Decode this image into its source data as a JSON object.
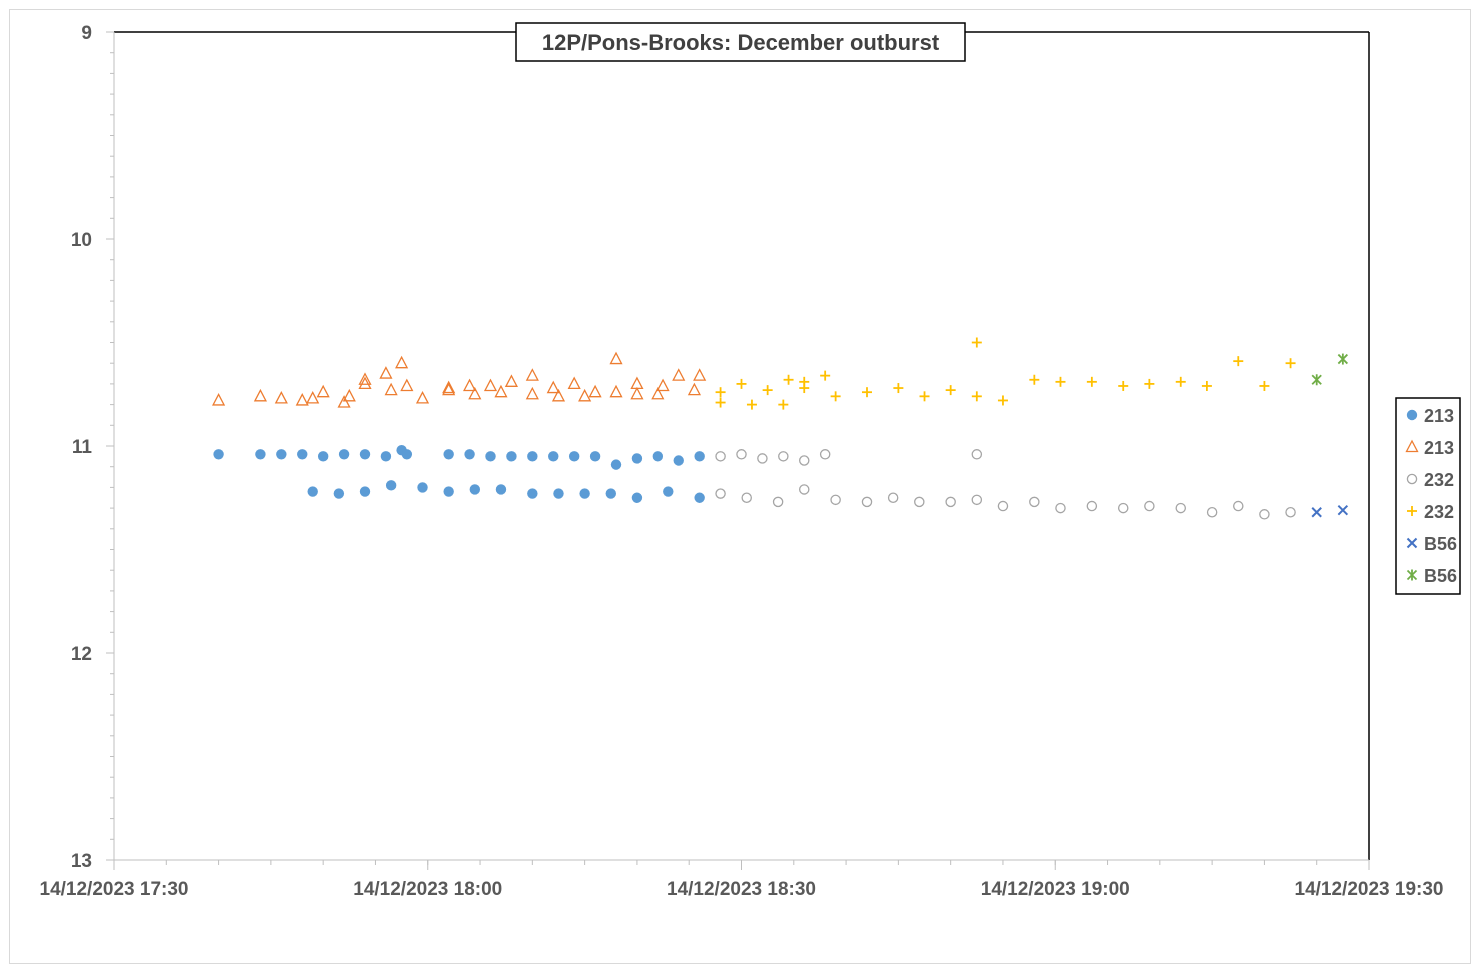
{
  "chart_data": {
    "type": "scatter",
    "title": "12P/Pons-Brooks: December outburst",
    "xlabel": "",
    "ylabel": "",
    "x_axis": {
      "type": "datetime",
      "min": "2023-12-14T17:30",
      "max": "2023-12-14T19:30",
      "major_ticks": [
        "2023-12-14T17:30",
        "2023-12-14T18:00",
        "2023-12-14T18:30",
        "2023-12-14T19:00",
        "2023-12-14T19:30"
      ],
      "tick_labels": [
        "14/12/2023 17:30",
        "14/12/2023 18:00",
        "14/12/2023 18:30",
        "14/12/2023 19:00",
        "14/12/2023 19:30"
      ],
      "minor_step_minutes": 5
    },
    "y_axis": {
      "min": 9,
      "max": 13,
      "reversed": true,
      "ticks": [
        9,
        10,
        11,
        12,
        13
      ],
      "tick_labels": [
        "9",
        "10",
        "11",
        "12",
        "13"
      ],
      "minor_step": 0.1
    },
    "grid": false,
    "legend_position": "right",
    "series": [
      {
        "name": "213",
        "marker": "filled-circle",
        "color": "#5B9BD5",
        "points": [
          [
            "17:40:00",
            11.04
          ],
          [
            "17:44:00",
            11.04
          ],
          [
            "17:46:00",
            11.04
          ],
          [
            "17:48:00",
            11.04
          ],
          [
            "17:50:00",
            11.05
          ],
          [
            "17:52:00",
            11.04
          ],
          [
            "17:54:00",
            11.04
          ],
          [
            "17:56:00",
            11.05
          ],
          [
            "17:57:30",
            11.02
          ],
          [
            "17:58:00",
            11.04
          ],
          [
            "18:02:00",
            11.04
          ],
          [
            "18:04:00",
            11.04
          ],
          [
            "18:06:00",
            11.05
          ],
          [
            "18:08:00",
            11.05
          ],
          [
            "18:10:00",
            11.05
          ],
          [
            "18:12:00",
            11.05
          ],
          [
            "18:14:00",
            11.05
          ],
          [
            "18:16:00",
            11.05
          ],
          [
            "18:18:00",
            11.09
          ],
          [
            "18:20:00",
            11.06
          ],
          [
            "18:22:00",
            11.05
          ],
          [
            "18:24:00",
            11.07
          ],
          [
            "18:26:00",
            11.05
          ],
          [
            "17:49:00",
            11.22
          ],
          [
            "17:51:30",
            11.23
          ],
          [
            "17:54:00",
            11.22
          ],
          [
            "17:56:30",
            11.19
          ],
          [
            "17:59:30",
            11.2
          ],
          [
            "18:02:00",
            11.22
          ],
          [
            "18:04:30",
            11.21
          ],
          [
            "18:07:00",
            11.21
          ],
          [
            "18:10:00",
            11.23
          ],
          [
            "18:12:30",
            11.23
          ],
          [
            "18:15:00",
            11.23
          ],
          [
            "18:17:30",
            11.23
          ],
          [
            "18:20:00",
            11.25
          ],
          [
            "18:23:00",
            11.22
          ],
          [
            "18:26:00",
            11.25
          ]
        ]
      },
      {
        "name": "213",
        "marker": "open-triangle",
        "color": "#ED7D31",
        "points": [
          [
            "17:40:00",
            10.78
          ],
          [
            "17:44:00",
            10.76
          ],
          [
            "17:46:00",
            10.77
          ],
          [
            "17:48:00",
            10.78
          ],
          [
            "17:49:00",
            10.77
          ],
          [
            "17:50:00",
            10.74
          ],
          [
            "17:52:00",
            10.79
          ],
          [
            "17:52:30",
            10.76
          ],
          [
            "17:54:00",
            10.7
          ],
          [
            "17:54:00",
            10.68
          ],
          [
            "17:56:00",
            10.65
          ],
          [
            "17:56:30",
            10.73
          ],
          [
            "17:57:30",
            10.6
          ],
          [
            "17:58:00",
            10.71
          ],
          [
            "17:59:30",
            10.77
          ],
          [
            "18:02:00",
            10.73
          ],
          [
            "18:02:00",
            10.72
          ],
          [
            "18:04:00",
            10.71
          ],
          [
            "18:04:30",
            10.75
          ],
          [
            "18:06:00",
            10.71
          ],
          [
            "18:07:00",
            10.74
          ],
          [
            "18:08:00",
            10.69
          ],
          [
            "18:10:00",
            10.75
          ],
          [
            "18:10:00",
            10.66
          ],
          [
            "18:12:00",
            10.72
          ],
          [
            "18:12:30",
            10.76
          ],
          [
            "18:14:00",
            10.7
          ],
          [
            "18:15:00",
            10.76
          ],
          [
            "18:16:00",
            10.74
          ],
          [
            "18:18:00",
            10.74
          ],
          [
            "18:18:00",
            10.58
          ],
          [
            "18:20:00",
            10.75
          ],
          [
            "18:20:00",
            10.7
          ],
          [
            "18:22:00",
            10.75
          ],
          [
            "18:22:30",
            10.71
          ],
          [
            "18:24:00",
            10.66
          ],
          [
            "18:25:30",
            10.73
          ],
          [
            "18:26:00",
            10.66
          ]
        ]
      },
      {
        "name": "232",
        "marker": "open-circle",
        "color": "#A5A5A5",
        "points": [
          [
            "18:28:00",
            11.05
          ],
          [
            "18:30:00",
            11.04
          ],
          [
            "18:32:00",
            11.06
          ],
          [
            "18:34:00",
            11.05
          ],
          [
            "18:36:00",
            11.07
          ],
          [
            "18:38:00",
            11.04
          ],
          [
            "18:52:30",
            11.04
          ],
          [
            "18:28:00",
            11.23
          ],
          [
            "18:30:30",
            11.25
          ],
          [
            "18:33:30",
            11.27
          ],
          [
            "18:36:00",
            11.21
          ],
          [
            "18:39:00",
            11.26
          ],
          [
            "18:42:00",
            11.27
          ],
          [
            "18:44:30",
            11.25
          ],
          [
            "18:47:00",
            11.27
          ],
          [
            "18:50:00",
            11.27
          ],
          [
            "18:52:30",
            11.26
          ],
          [
            "18:55:00",
            11.29
          ],
          [
            "18:58:00",
            11.27
          ],
          [
            "19:00:30",
            11.3
          ],
          [
            "19:03:30",
            11.29
          ],
          [
            "19:06:30",
            11.3
          ],
          [
            "19:09:00",
            11.29
          ],
          [
            "19:12:00",
            11.3
          ],
          [
            "19:15:00",
            11.32
          ],
          [
            "19:17:30",
            11.29
          ],
          [
            "19:20:00",
            11.33
          ],
          [
            "19:22:30",
            11.32
          ]
        ]
      },
      {
        "name": "232",
        "marker": "plus",
        "color": "#FFC000",
        "points": [
          [
            "18:28:00",
            10.74
          ],
          [
            "18:28:00",
            10.79
          ],
          [
            "18:30:00",
            10.7
          ],
          [
            "18:31:00",
            10.8
          ],
          [
            "18:32:30",
            10.73
          ],
          [
            "18:34:00",
            10.8
          ],
          [
            "18:34:30",
            10.68
          ],
          [
            "18:36:00",
            10.72
          ],
          [
            "18:36:00",
            10.69
          ],
          [
            "18:38:00",
            10.66
          ],
          [
            "18:39:00",
            10.76
          ],
          [
            "18:42:00",
            10.74
          ],
          [
            "18:45:00",
            10.72
          ],
          [
            "18:47:30",
            10.76
          ],
          [
            "18:50:00",
            10.73
          ],
          [
            "18:52:30",
            10.76
          ],
          [
            "18:52:30",
            10.5
          ],
          [
            "18:55:00",
            10.78
          ],
          [
            "18:58:00",
            10.68
          ],
          [
            "19:00:30",
            10.69
          ],
          [
            "19:03:30",
            10.69
          ],
          [
            "19:06:30",
            10.71
          ],
          [
            "19:09:00",
            10.7
          ],
          [
            "19:12:00",
            10.69
          ],
          [
            "19:14:30",
            10.71
          ],
          [
            "19:17:30",
            10.59
          ],
          [
            "19:20:00",
            10.71
          ],
          [
            "19:22:30",
            10.6
          ]
        ]
      },
      {
        "name": "B56",
        "marker": "x",
        "color": "#4472C4",
        "points": [
          [
            "19:25:00",
            11.32
          ],
          [
            "19:27:30",
            11.31
          ]
        ]
      },
      {
        "name": "B56",
        "marker": "star",
        "color": "#70AD47",
        "points": [
          [
            "19:25:00",
            10.68
          ],
          [
            "19:27:30",
            10.58
          ]
        ]
      }
    ]
  }
}
